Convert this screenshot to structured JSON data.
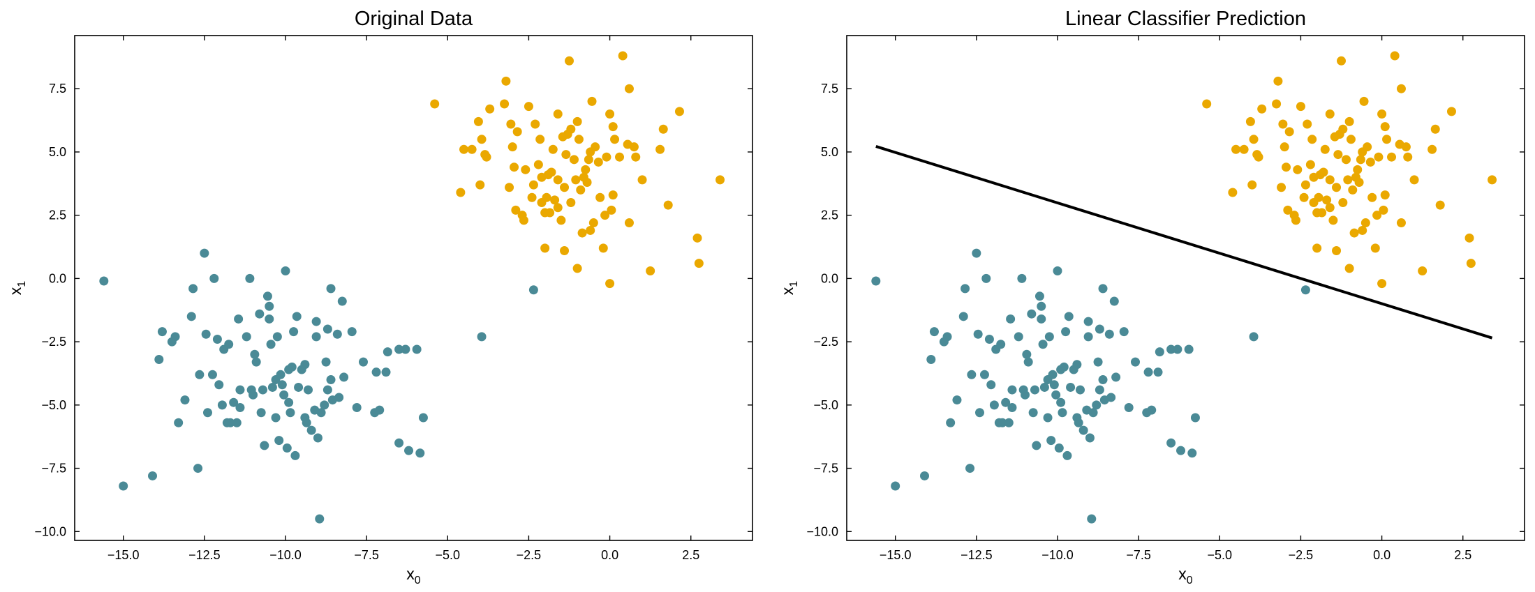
{
  "chart_data": [
    {
      "type": "scatter",
      "title": "Original Data",
      "xlabel": "x",
      "xlabel_sub": "0",
      "ylabel": "x",
      "ylabel_sub": "1",
      "xlim": [
        -16.5,
        4.4
      ],
      "ylim": [
        -10.35,
        9.6
      ],
      "xticks": [
        -15.0,
        -12.5,
        -10.0,
        -7.5,
        -5.0,
        -2.5,
        0.0,
        2.5
      ],
      "xtick_labels": [
        "−15.0",
        "−12.5",
        "−10.0",
        "−7.5",
        "−5.0",
        "−2.5",
        "0.0",
        "2.5"
      ],
      "yticks": [
        -10.0,
        -7.5,
        -5.0,
        -2.5,
        0.0,
        2.5,
        5.0,
        7.5
      ],
      "ytick_labels": [
        "−10.0",
        "−7.5",
        "−5.0",
        "−2.5",
        "0.0",
        "2.5",
        "5.0",
        "7.5"
      ],
      "grid": false,
      "series": [
        {
          "color": "#4a8a96",
          "points": "blue"
        },
        {
          "color": "#eaa800",
          "points": "yellow"
        }
      ]
    },
    {
      "type": "scatter",
      "title": "Linear Classifier Prediction",
      "xlabel": "x",
      "xlabel_sub": "0",
      "ylabel": "x",
      "ylabel_sub": "1",
      "xlim": [
        -16.5,
        4.4
      ],
      "ylim": [
        -10.35,
        9.6
      ],
      "xticks": [
        -15.0,
        -12.5,
        -10.0,
        -7.5,
        -5.0,
        -2.5,
        0.0,
        2.5
      ],
      "xtick_labels": [
        "−15.0",
        "−12.5",
        "−10.0",
        "−7.5",
        "−5.0",
        "−2.5",
        "0.0",
        "2.5"
      ],
      "yticks": [
        -10.0,
        -7.5,
        -5.0,
        -2.5,
        0.0,
        2.5,
        5.0,
        7.5
      ],
      "ytick_labels": [
        "−10.0",
        "−7.5",
        "−5.0",
        "−2.5",
        "0.0",
        "2.5",
        "5.0",
        "7.5"
      ],
      "grid": false,
      "series": [
        {
          "color": "#4a8a96",
          "points": "blue"
        },
        {
          "color": "#eaa800",
          "points": "yellow"
        }
      ],
      "decision_boundary": {
        "color": "#000000",
        "x": [
          -15.6,
          3.4
        ],
        "y": [
          5.22,
          -2.35
        ]
      }
    }
  ],
  "points": {
    "blue": [
      [
        -15.6,
        -0.1
      ],
      [
        -15.0,
        -8.2
      ],
      [
        -14.1,
        -7.8
      ],
      [
        -13.9,
        -3.2
      ],
      [
        -13.8,
        -2.1
      ],
      [
        -13.5,
        -2.5
      ],
      [
        -13.4,
        -2.3
      ],
      [
        -13.3,
        -5.7
      ],
      [
        -13.1,
        -4.8
      ],
      [
        -12.9,
        -1.5
      ],
      [
        -12.85,
        -0.4
      ],
      [
        -12.7,
        -7.5
      ],
      [
        -12.65,
        -3.8
      ],
      [
        -12.5,
        1.0
      ],
      [
        -12.45,
        -2.2
      ],
      [
        -12.4,
        -5.3
      ],
      [
        -12.25,
        -3.8
      ],
      [
        -12.2,
        0.0
      ],
      [
        -12.1,
        -2.4
      ],
      [
        -12.05,
        -4.2
      ],
      [
        -11.95,
        -5.0
      ],
      [
        -11.9,
        -2.8
      ],
      [
        -11.8,
        -5.7
      ],
      [
        -11.75,
        -2.6
      ],
      [
        -11.7,
        -5.7
      ],
      [
        -11.6,
        -4.9
      ],
      [
        -11.5,
        -5.7
      ],
      [
        -11.45,
        -1.6
      ],
      [
        -11.4,
        -5.1
      ],
      [
        -11.4,
        -4.4
      ],
      [
        -11.2,
        -2.3
      ],
      [
        -11.1,
        0.0
      ],
      [
        -11.05,
        -4.4
      ],
      [
        -11.0,
        -4.6
      ],
      [
        -10.95,
        -3.0
      ],
      [
        -10.9,
        -3.3
      ],
      [
        -10.8,
        -1.4
      ],
      [
        -10.75,
        -5.3
      ],
      [
        -10.7,
        -4.4
      ],
      [
        -10.65,
        -6.6
      ],
      [
        -10.55,
        -0.7
      ],
      [
        -10.5,
        -1.6
      ],
      [
        -10.5,
        -1.1
      ],
      [
        -10.45,
        -2.6
      ],
      [
        -10.4,
        -4.3
      ],
      [
        -10.3,
        -4.0
      ],
      [
        -10.3,
        -5.5
      ],
      [
        -10.25,
        -2.3
      ],
      [
        -10.2,
        -6.4
      ],
      [
        -10.15,
        -3.8
      ],
      [
        -10.1,
        -4.2
      ],
      [
        -10.05,
        -4.6
      ],
      [
        -10.0,
        0.3
      ],
      [
        -9.95,
        -6.7
      ],
      [
        -9.9,
        -3.6
      ],
      [
        -9.9,
        -4.9
      ],
      [
        -9.85,
        -5.3
      ],
      [
        -9.8,
        -3.5
      ],
      [
        -9.75,
        -2.1
      ],
      [
        -9.7,
        -7.0
      ],
      [
        -9.65,
        -1.5
      ],
      [
        -9.6,
        -4.3
      ],
      [
        -9.5,
        -3.6
      ],
      [
        -9.4,
        -3.4
      ],
      [
        -9.4,
        -5.5
      ],
      [
        -9.35,
        -5.7
      ],
      [
        -9.3,
        -4.4
      ],
      [
        -9.2,
        -6.0
      ],
      [
        -9.1,
        -5.2
      ],
      [
        -9.05,
        -2.3
      ],
      [
        -9.05,
        -1.7
      ],
      [
        -9.0,
        -6.3
      ],
      [
        -8.95,
        -9.5
      ],
      [
        -8.9,
        -5.3
      ],
      [
        -8.8,
        -5.0
      ],
      [
        -8.75,
        -3.3
      ],
      [
        -8.7,
        -2.0
      ],
      [
        -8.7,
        -4.4
      ],
      [
        -8.6,
        -4.0
      ],
      [
        -8.6,
        -0.4
      ],
      [
        -8.55,
        -4.8
      ],
      [
        -8.4,
        -2.2
      ],
      [
        -8.35,
        -4.7
      ],
      [
        -8.25,
        -0.9
      ],
      [
        -8.2,
        -3.9
      ],
      [
        -7.95,
        -2.1
      ],
      [
        -7.8,
        -5.1
      ],
      [
        -7.6,
        -3.3
      ],
      [
        -7.25,
        -5.3
      ],
      [
        -7.2,
        -3.7
      ],
      [
        -7.1,
        -5.2
      ],
      [
        -6.9,
        -3.7
      ],
      [
        -6.85,
        -2.9
      ],
      [
        -6.5,
        -2.8
      ],
      [
        -6.5,
        -6.5
      ],
      [
        -6.3,
        -2.8
      ],
      [
        -6.2,
        -6.8
      ],
      [
        -5.95,
        -2.8
      ],
      [
        -5.85,
        -6.9
      ],
      [
        -5.75,
        -5.5
      ],
      [
        -3.95,
        -2.3
      ],
      [
        -2.35,
        -0.45
      ]
    ],
    "yellow": [
      [
        -5.4,
        6.9
      ],
      [
        -4.6,
        3.4
      ],
      [
        -4.5,
        5.1
      ],
      [
        -4.25,
        5.1
      ],
      [
        -4.05,
        6.2
      ],
      [
        -4.0,
        3.7
      ],
      [
        -3.95,
        5.5
      ],
      [
        -3.85,
        4.9
      ],
      [
        -3.8,
        4.8
      ],
      [
        -3.7,
        6.7
      ],
      [
        -3.25,
        6.9
      ],
      [
        -3.2,
        7.8
      ],
      [
        -3.1,
        3.6
      ],
      [
        -3.05,
        6.1
      ],
      [
        -3.0,
        5.2
      ],
      [
        -2.95,
        4.4
      ],
      [
        -2.85,
        5.8
      ],
      [
        -2.7,
        2.5
      ],
      [
        -2.65,
        2.3
      ],
      [
        -2.5,
        6.8
      ],
      [
        -2.4,
        3.2
      ],
      [
        -2.35,
        3.7
      ],
      [
        -2.3,
        6.1
      ],
      [
        -2.2,
        4.5
      ],
      [
        -2.15,
        5.5
      ],
      [
        -2.1,
        4.0
      ],
      [
        -2.0,
        2.6
      ],
      [
        -1.95,
        3.2
      ],
      [
        -1.9,
        4.1
      ],
      [
        -1.85,
        2.6
      ],
      [
        -1.8,
        4.2
      ],
      [
        -1.75,
        5.1
      ],
      [
        -1.7,
        3.1
      ],
      [
        -1.6,
        2.8
      ],
      [
        -1.6,
        6.5
      ],
      [
        -1.5,
        2.3
      ],
      [
        -1.45,
        5.6
      ],
      [
        -1.4,
        3.6
      ],
      [
        -1.35,
        4.9
      ],
      [
        -1.3,
        5.7
      ],
      [
        -1.25,
        8.6
      ],
      [
        -1.2,
        5.9
      ],
      [
        -1.1,
        4.7
      ],
      [
        -1.05,
        3.9
      ],
      [
        -1.0,
        6.2
      ],
      [
        -0.95,
        5.5
      ],
      [
        -0.9,
        3.5
      ],
      [
        -0.85,
        1.8
      ],
      [
        -0.8,
        4.0
      ],
      [
        -0.75,
        4.3
      ],
      [
        -0.7,
        3.8
      ],
      [
        -0.65,
        4.7
      ],
      [
        -0.6,
        5.0
      ],
      [
        -0.55,
        7.0
      ],
      [
        -0.5,
        2.2
      ],
      [
        -0.45,
        5.2
      ],
      [
        -0.3,
        3.2
      ],
      [
        -0.2,
        1.2
      ],
      [
        -0.15,
        2.5
      ],
      [
        -0.1,
        4.8
      ],
      [
        0.0,
        6.5
      ],
      [
        0.05,
        2.7
      ],
      [
        0.1,
        3.3
      ],
      [
        0.1,
        6.0
      ],
      [
        0.15,
        5.5
      ],
      [
        0.3,
        4.8
      ],
      [
        0.4,
        8.8
      ],
      [
        0.55,
        5.3
      ],
      [
        0.6,
        2.2
      ],
      [
        0.6,
        7.5
      ],
      [
        0.75,
        5.2
      ],
      [
        0.8,
        4.8
      ],
      [
        1.0,
        3.9
      ],
      [
        1.25,
        0.3
      ],
      [
        1.55,
        5.1
      ],
      [
        1.65,
        5.9
      ],
      [
        1.8,
        2.9
      ],
      [
        2.15,
        6.6
      ],
      [
        2.7,
        1.6
      ],
      [
        2.75,
        0.6
      ],
      [
        3.4,
        3.9
      ],
      [
        -2.0,
        1.2
      ],
      [
        -1.4,
        1.1
      ],
      [
        -1.0,
        0.4
      ],
      [
        0.0,
        -0.2
      ],
      [
        -2.9,
        2.7
      ],
      [
        -0.6,
        1.9
      ],
      [
        -2.1,
        3.0
      ],
      [
        -1.6,
        3.9
      ],
      [
        -0.35,
        4.6
      ],
      [
        -1.2,
        3.0
      ],
      [
        -2.6,
        4.3
      ]
    ]
  }
}
